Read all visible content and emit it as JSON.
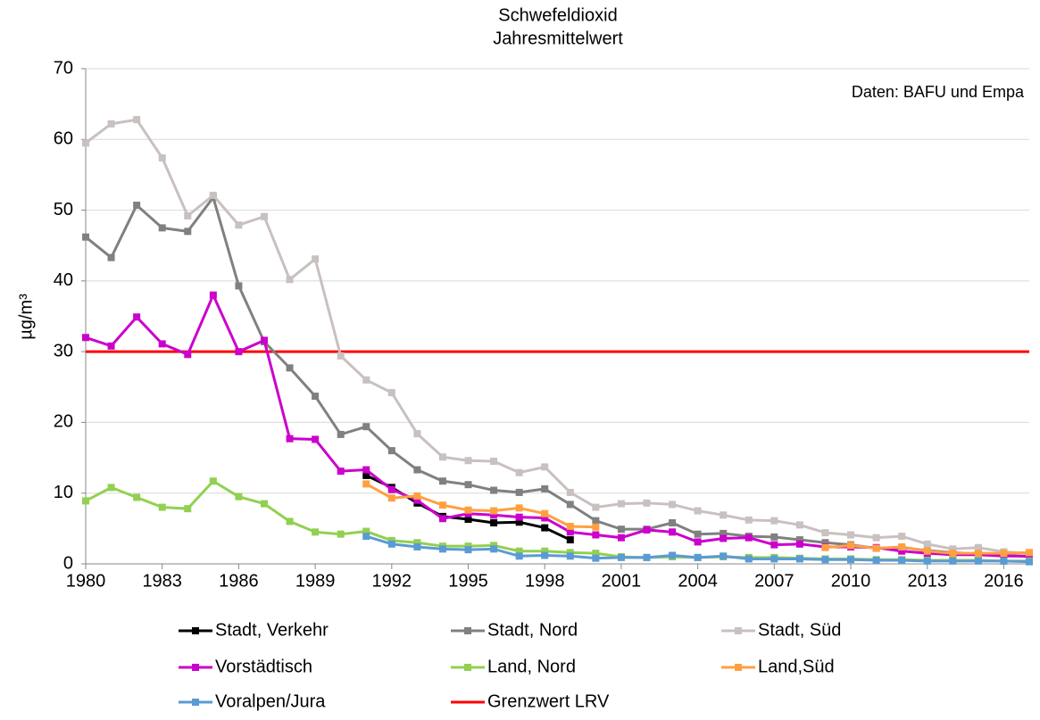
{
  "chart_data": {
    "type": "line",
    "title": "Schwefeldioxid",
    "subtitle": "Jahresmittelwert",
    "annotation": "Daten: BAFU und Empa",
    "y_label": "µg/m³",
    "x": [
      1980,
      1981,
      1982,
      1983,
      1984,
      1985,
      1986,
      1987,
      1988,
      1989,
      1990,
      1991,
      1992,
      1993,
      1994,
      1995,
      1996,
      1997,
      1998,
      1999,
      2000,
      2001,
      2002,
      2003,
      2004,
      2005,
      2006,
      2007,
      2008,
      2009,
      2010,
      2011,
      2012,
      2013,
      2014,
      2015,
      2016,
      2017
    ],
    "xlim": [
      1980,
      2017
    ],
    "xticks": [
      1980,
      1983,
      1986,
      1989,
      1992,
      1995,
      1998,
      2001,
      2004,
      2007,
      2010,
      2013,
      2016
    ],
    "ylim": [
      0,
      70
    ],
    "yticks": [
      0,
      10,
      20,
      30,
      40,
      50,
      60,
      70
    ],
    "grid": true,
    "series": [
      {
        "name": "Stadt, Verkehr",
        "color": "#000000",
        "values": [
          null,
          null,
          null,
          null,
          null,
          null,
          null,
          null,
          null,
          null,
          null,
          12.5,
          10.8,
          8.6,
          6.7,
          6.3,
          5.8,
          5.9,
          5.1,
          3.4,
          null,
          null,
          null,
          null,
          null,
          null,
          null,
          null,
          null,
          null,
          null,
          null,
          null,
          null,
          null,
          null,
          null,
          null
        ]
      },
      {
        "name": "Stadt, Nord",
        "color": "#808080",
        "values": [
          46.2,
          43.3,
          50.7,
          47.5,
          47.0,
          51.8,
          39.3,
          31.4,
          27.7,
          23.7,
          18.3,
          19.4,
          16.0,
          13.3,
          11.7,
          11.2,
          10.4,
          10.1,
          10.6,
          8.4,
          6.1,
          4.9,
          4.9,
          5.8,
          4.2,
          4.3,
          3.9,
          3.8,
          3.4,
          3.0,
          2.7,
          2.2,
          2.3,
          1.9,
          1.6,
          1.4,
          1.3,
          1.0
        ]
      },
      {
        "name": "Stadt, Süd",
        "color": "#c9c0c0",
        "values": [
          59.5,
          62.2,
          62.8,
          57.4,
          49.2,
          52.1,
          47.9,
          49.1,
          40.2,
          43.1,
          29.4,
          26.0,
          24.2,
          18.4,
          15.1,
          14.6,
          14.5,
          12.9,
          13.7,
          10.1,
          8.0,
          8.5,
          8.6,
          8.4,
          7.5,
          6.9,
          6.2,
          6.1,
          5.5,
          4.4,
          4.1,
          3.7,
          3.9,
          2.8,
          2.1,
          2.3,
          1.7,
          1.5
        ]
      },
      {
        "name": "Vorstädtisch",
        "color": "#cc00cc",
        "values": [
          32.0,
          30.8,
          34.9,
          31.1,
          29.6,
          38.0,
          30.0,
          31.6,
          17.7,
          17.6,
          13.1,
          13.3,
          10.5,
          9.0,
          6.4,
          7.1,
          6.9,
          6.6,
          6.5,
          4.5,
          4.1,
          3.7,
          4.8,
          4.5,
          3.1,
          3.6,
          3.7,
          2.7,
          2.8,
          2.4,
          2.4,
          2.3,
          1.8,
          1.5,
          1.3,
          1.3,
          1.1,
          1.1
        ]
      },
      {
        "name": "Land, Nord",
        "color": "#92d050",
        "values": [
          8.9,
          10.8,
          9.4,
          8.0,
          7.8,
          11.7,
          9.5,
          8.5,
          6.0,
          4.5,
          4.2,
          4.6,
          3.3,
          3.0,
          2.5,
          2.5,
          2.6,
          1.8,
          1.8,
          1.6,
          1.5,
          1.0,
          0.9,
          1.0,
          0.9,
          1.0,
          0.9,
          0.9,
          0.8,
          0.7,
          0.7,
          0.6,
          0.6,
          0.5,
          0.5,
          0.5,
          0.4,
          0.4
        ]
      },
      {
        "name": "Land,Süd",
        "color": "#ffa040",
        "values": [
          null,
          null,
          null,
          null,
          null,
          null,
          null,
          null,
          null,
          null,
          null,
          11.3,
          9.3,
          9.6,
          8.3,
          7.6,
          7.5,
          7.9,
          7.1,
          5.3,
          5.2,
          null,
          null,
          null,
          null,
          null,
          null,
          null,
          null,
          2.3,
          2.6,
          2.2,
          2.4,
          1.8,
          1.5,
          1.5,
          1.5,
          1.6
        ]
      },
      {
        "name": "Voralpen/Jura",
        "color": "#5b9bd5",
        "values": [
          null,
          null,
          null,
          null,
          null,
          null,
          null,
          null,
          null,
          null,
          null,
          3.9,
          2.8,
          2.4,
          2.1,
          2.0,
          2.1,
          1.1,
          1.2,
          1.1,
          0.8,
          0.9,
          0.9,
          1.2,
          0.9,
          1.1,
          0.7,
          0.7,
          0.7,
          0.6,
          0.6,
          0.5,
          0.5,
          0.4,
          0.4,
          0.4,
          0.4,
          0.3
        ]
      }
    ],
    "reference_line": {
      "name": "Grenzwert LRV",
      "value": 30,
      "color": "#ff0000"
    }
  }
}
